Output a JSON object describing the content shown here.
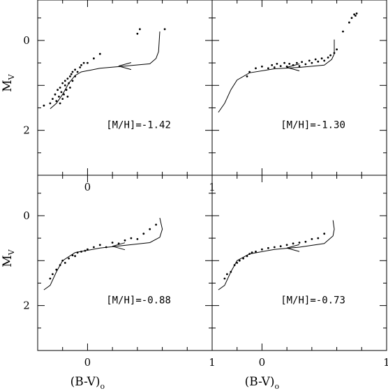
{
  "chart_data": [
    {
      "type": "scatter",
      "annotation": "[M/H]=-1.42",
      "xlim": [
        -0.4,
        1.0
      ],
      "ylim": [
        3.0,
        -0.9
      ],
      "xticks": [
        "0",
        "1"
      ],
      "yticks": [
        "0",
        "2"
      ],
      "xlabel": "",
      "ylabel": "M",
      "ylabel_sub": "V",
      "points": [
        [
          -0.35,
          1.45
        ],
        [
          -0.3,
          1.4
        ],
        [
          -0.28,
          1.3
        ],
        [
          -0.26,
          1.2
        ],
        [
          -0.25,
          1.35
        ],
        [
          -0.24,
          1.1
        ],
        [
          -0.23,
          1.25
        ],
        [
          -0.22,
          1.05
        ],
        [
          -0.22,
          1.4
        ],
        [
          -0.21,
          1.15
        ],
        [
          -0.2,
          0.95
        ],
        [
          -0.2,
          1.3
        ],
        [
          -0.19,
          1.2
        ],
        [
          -0.18,
          1.0
        ],
        [
          -0.18,
          0.9
        ],
        [
          -0.17,
          1.1
        ],
        [
          -0.16,
          0.85
        ],
        [
          -0.16,
          1.25
        ],
        [
          -0.15,
          0.95
        ],
        [
          -0.14,
          0.8
        ],
        [
          -0.14,
          1.05
        ],
        [
          -0.13,
          0.75
        ],
        [
          -0.12,
          0.9
        ],
        [
          -0.12,
          0.7
        ],
        [
          -0.1,
          0.8
        ],
        [
          -0.1,
          0.65
        ],
        [
          -0.08,
          0.7
        ],
        [
          -0.06,
          0.6
        ],
        [
          -0.05,
          0.55
        ],
        [
          -0.03,
          0.5
        ],
        [
          0.0,
          0.5
        ],
        [
          0.05,
          0.4
        ],
        [
          0.1,
          0.3
        ],
        [
          0.4,
          -0.15
        ],
        [
          0.42,
          -0.25
        ],
        [
          0.62,
          -0.25
        ]
      ],
      "track": [
        [
          -0.3,
          1.52
        ],
        [
          -0.25,
          1.4
        ],
        [
          -0.2,
          1.2
        ],
        [
          -0.15,
          0.95
        ],
        [
          -0.1,
          0.78
        ],
        [
          -0.05,
          0.7
        ],
        [
          0.1,
          0.62
        ],
        [
          0.3,
          0.57
        ],
        [
          0.5,
          0.52
        ],
        [
          0.55,
          0.4
        ],
        [
          0.57,
          0.25
        ],
        [
          0.58,
          -0.2
        ]
      ],
      "arrow_at": [
        0.35,
        0.57
      ]
    },
    {
      "type": "scatter",
      "annotation": "[M/H]=-1.30",
      "xlim": [
        -0.4,
        1.0
      ],
      "ylim": [
        3.0,
        -0.9
      ],
      "xticks": [],
      "yticks": [],
      "xlabel": "",
      "ylabel": "",
      "points": [
        [
          -0.12,
          0.8
        ],
        [
          -0.1,
          0.7
        ],
        [
          -0.05,
          0.62
        ],
        [
          0.0,
          0.58
        ],
        [
          0.05,
          0.62
        ],
        [
          0.08,
          0.55
        ],
        [
          0.1,
          0.6
        ],
        [
          0.12,
          0.52
        ],
        [
          0.15,
          0.57
        ],
        [
          0.18,
          0.5
        ],
        [
          0.2,
          0.58
        ],
        [
          0.22,
          0.52
        ],
        [
          0.25,
          0.55
        ],
        [
          0.28,
          0.5
        ],
        [
          0.3,
          0.57
        ],
        [
          0.32,
          0.48
        ],
        [
          0.35,
          0.53
        ],
        [
          0.38,
          0.45
        ],
        [
          0.4,
          0.5
        ],
        [
          0.43,
          0.42
        ],
        [
          0.45,
          0.47
        ],
        [
          0.48,
          0.4
        ],
        [
          0.5,
          0.45
        ],
        [
          0.53,
          0.38
        ],
        [
          0.55,
          0.33
        ],
        [
          0.58,
          0.28
        ],
        [
          0.6,
          0.2
        ],
        [
          0.65,
          -0.2
        ],
        [
          0.7,
          -0.4
        ],
        [
          0.72,
          -0.5
        ],
        [
          0.75,
          -0.55
        ],
        [
          0.76,
          -0.6
        ],
        [
          0.74,
          -0.58
        ]
      ],
      "track": [
        [
          -0.35,
          1.6
        ],
        [
          -0.3,
          1.4
        ],
        [
          -0.25,
          1.1
        ],
        [
          -0.2,
          0.88
        ],
        [
          -0.1,
          0.72
        ],
        [
          0.1,
          0.63
        ],
        [
          0.3,
          0.6
        ],
        [
          0.5,
          0.55
        ],
        [
          0.56,
          0.42
        ],
        [
          0.58,
          0.3
        ],
        [
          0.58,
          -0.02
        ]
      ],
      "arrow_at": [
        0.3,
        0.6
      ]
    },
    {
      "type": "scatter",
      "annotation": "[M/H]=-0.88",
      "xlim": [
        -0.4,
        1.0
      ],
      "ylim": [
        3.0,
        -0.9
      ],
      "xticks": [
        "0",
        "1"
      ],
      "yticks": [
        "0",
        "2"
      ],
      "xlabel": "(B-V)",
      "xlabel_sub": "o",
      "ylabel": "M",
      "ylabel_sub": "V",
      "points": [
        [
          -0.3,
          1.4
        ],
        [
          -0.28,
          1.3
        ],
        [
          -0.25,
          1.2
        ],
        [
          -0.22,
          1.1
        ],
        [
          -0.2,
          1.0
        ],
        [
          -0.18,
          1.05
        ],
        [
          -0.15,
          0.95
        ],
        [
          -0.12,
          0.88
        ],
        [
          -0.1,
          0.9
        ],
        [
          -0.08,
          0.82
        ],
        [
          -0.05,
          0.8
        ],
        [
          -0.02,
          0.78
        ],
        [
          0.0,
          0.75
        ],
        [
          0.05,
          0.7
        ],
        [
          0.1,
          0.65
        ],
        [
          0.15,
          0.7
        ],
        [
          0.2,
          0.6
        ],
        [
          0.25,
          0.62
        ],
        [
          0.3,
          0.55
        ],
        [
          0.35,
          0.5
        ],
        [
          0.4,
          0.52
        ],
        [
          0.45,
          0.4
        ],
        [
          0.5,
          0.3
        ],
        [
          0.55,
          0.2
        ]
      ],
      "track": [
        [
          -0.35,
          1.65
        ],
        [
          -0.3,
          1.55
        ],
        [
          -0.25,
          1.25
        ],
        [
          -0.2,
          1.0
        ],
        [
          -0.1,
          0.82
        ],
        [
          0.1,
          0.72
        ],
        [
          0.3,
          0.66
        ],
        [
          0.5,
          0.6
        ],
        [
          0.58,
          0.48
        ],
        [
          0.6,
          0.3
        ],
        [
          0.58,
          0.05
        ]
      ],
      "arrow_at": [
        0.3,
        0.68
      ]
    },
    {
      "type": "scatter",
      "annotation": "[M/H]=-0.73",
      "xlim": [
        -0.4,
        1.0
      ],
      "ylim": [
        3.0,
        -0.9
      ],
      "xticks": [
        "0",
        "1"
      ],
      "yticks": [],
      "xlabel": "(B-V)",
      "xlabel_sub": "o",
      "ylabel": "",
      "points": [
        [
          -0.3,
          1.4
        ],
        [
          -0.28,
          1.3
        ],
        [
          -0.25,
          1.25
        ],
        [
          -0.22,
          1.1
        ],
        [
          -0.2,
          1.05
        ],
        [
          -0.18,
          1.0
        ],
        [
          -0.15,
          0.95
        ],
        [
          -0.12,
          0.9
        ],
        [
          -0.1,
          0.85
        ],
        [
          -0.08,
          0.82
        ],
        [
          -0.05,
          0.8
        ],
        [
          0.0,
          0.75
        ],
        [
          0.05,
          0.72
        ],
        [
          0.1,
          0.7
        ],
        [
          0.15,
          0.68
        ],
        [
          0.2,
          0.65
        ],
        [
          0.25,
          0.62
        ],
        [
          0.3,
          0.6
        ],
        [
          0.35,
          0.58
        ],
        [
          0.4,
          0.52
        ],
        [
          0.45,
          0.5
        ],
        [
          0.5,
          0.4
        ]
      ],
      "track": [
        [
          -0.35,
          1.65
        ],
        [
          -0.3,
          1.55
        ],
        [
          -0.25,
          1.25
        ],
        [
          -0.2,
          1.0
        ],
        [
          -0.1,
          0.85
        ],
        [
          0.1,
          0.75
        ],
        [
          0.3,
          0.7
        ],
        [
          0.5,
          0.62
        ],
        [
          0.57,
          0.45
        ],
        [
          0.58,
          0.3
        ],
        [
          0.57,
          0.1
        ]
      ],
      "arrow_at": [
        0.3,
        0.72
      ]
    }
  ]
}
